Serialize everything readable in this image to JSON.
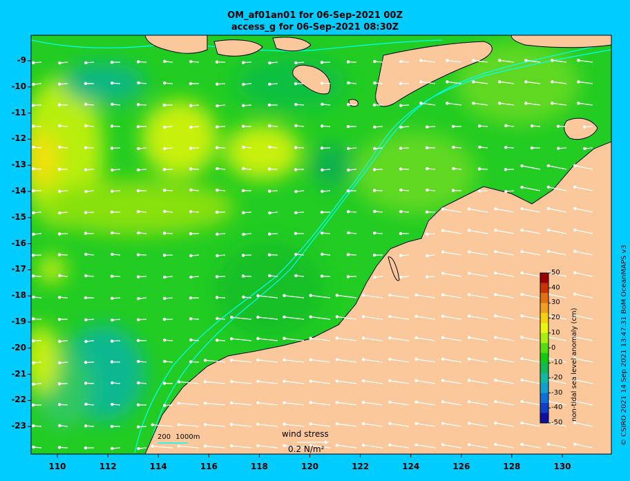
{
  "title": {
    "line1": "OM_af01an01 for 06-Sep-2021 00Z",
    "line2": "access_g for 06-Sep-2021 08:30Z"
  },
  "axes": {
    "longitude_ticks": [
      "110",
      "112",
      "114",
      "116",
      "118",
      "120",
      "122",
      "124",
      "126",
      "128",
      "130"
    ],
    "latitude_ticks": [
      "-9",
      "-10",
      "-11",
      "-12",
      "-13",
      "-14",
      "-15",
      "-16",
      "-17",
      "-18",
      "-19",
      "-20",
      "-21",
      "-22",
      "-23"
    ]
  },
  "colorbar": {
    "label": "non-tidal sea level anomaly (cm)",
    "ticks": [
      "50",
      "40",
      "30",
      "20",
      "10",
      "0",
      "-10",
      "-20",
      "-30",
      "-40",
      "-50"
    ],
    "colors": [
      "#9b0000",
      "#c8330a",
      "#e07010",
      "#f0a020",
      "#f5d010",
      "#e8f510",
      "#a8ee10",
      "#55dd10",
      "#10cc10",
      "#10b858",
      "#10b8a0",
      "#10a0d0",
      "#1070d8",
      "#1040c8",
      "#1010a0"
    ]
  },
  "wind_legend": {
    "label": "wind stress",
    "value": "0.2 N/m²"
  },
  "depth_legend": {
    "label1": "200",
    "label2": "1000m"
  },
  "credit": "© CSIRO 2021  14 Sep 2021 13:47:31 BoM OceanMAPS v3",
  "colors": {
    "background": "#00ccff",
    "land": "#fbc89b",
    "ocean_base": "#22cc22",
    "contour": "#00ffff"
  }
}
